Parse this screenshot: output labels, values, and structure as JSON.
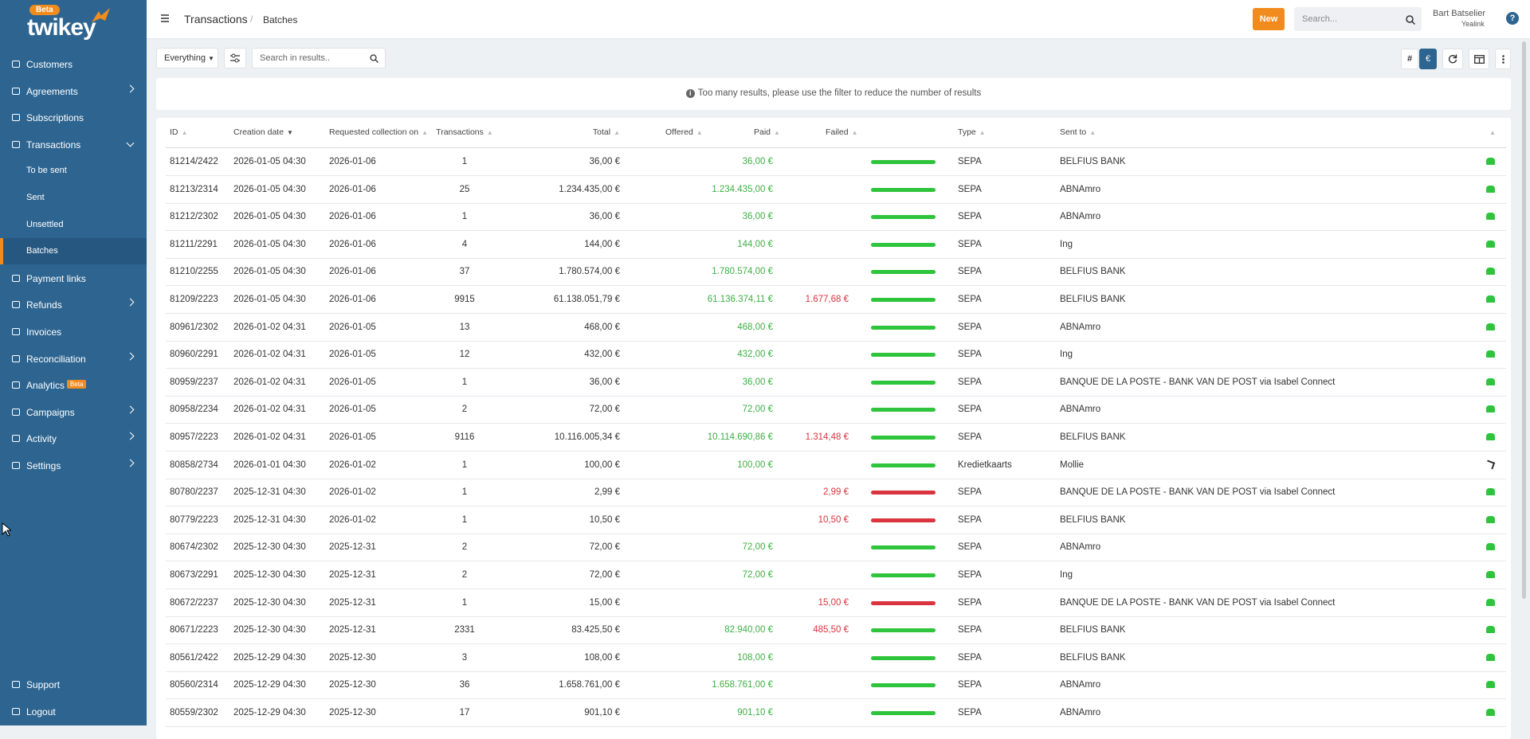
{
  "sidebar": {
    "logo_badge": "Beta",
    "logo": "twikey",
    "nav": [
      {
        "label": "Customers"
      },
      {
        "label": "Agreements",
        "expandable": true
      },
      {
        "label": "Subscriptions"
      },
      {
        "label": "Transactions",
        "expandable": true,
        "children": [
          "To be sent",
          "Sent",
          "Unsettled",
          "Batches"
        ]
      },
      {
        "label": "Payment links"
      },
      {
        "label": "Refunds",
        "expandable": true
      },
      {
        "label": "Invoices"
      },
      {
        "label": "Reconciliation",
        "expandable": true
      },
      {
        "label": "Analytics",
        "badge": "Beta"
      },
      {
        "label": "Campaigns",
        "expandable": true
      },
      {
        "label": "Activity",
        "expandable": true
      },
      {
        "label": "Settings",
        "expandable": true
      }
    ],
    "footer_nav": [
      "Support",
      "Logout"
    ]
  },
  "header": {
    "breadcrumb": [
      "Transactions",
      "Batches"
    ],
    "new_button": "New",
    "search_placeholder": "Search...",
    "user_name": "Bart Batselier",
    "company": "Yealink",
    "help": "?"
  },
  "toolbar": {
    "filter": "Everything",
    "search_placeholder": "Search in results..",
    "toggle_count": "#",
    "toggle_amount": "€"
  },
  "notice": "Too many results, please use the filter to reduce the number of results",
  "table": {
    "columns": [
      "ID",
      "Creation date",
      "Requested collection on",
      "Transactions",
      "Total",
      "Offered",
      "Paid",
      "Failed",
      null,
      "Type",
      "Sent to",
      null
    ],
    "rows": [
      [
        "81214/2422",
        "2026-01-05 04:30",
        "2026-01-06",
        "1",
        "36,00 €",
        null,
        "36,00 €",
        null,
        "SEPA",
        "BELFIUS BANK"
      ],
      [
        "81213/2314",
        "2026-01-05 04:30",
        "2026-01-06",
        "25",
        "1.234.435,00 €",
        null,
        "1.234.435,00 €",
        null,
        "SEPA",
        "ABNAmro"
      ],
      [
        "81212/2302",
        "2026-01-05 04:30",
        "2026-01-06",
        "1",
        "36,00 €",
        null,
        "36,00 €",
        null,
        "SEPA",
        "ABNAmro"
      ],
      [
        "81211/2291",
        "2026-01-05 04:30",
        "2026-01-06",
        "4",
        "144,00 €",
        null,
        "144,00 €",
        null,
        "SEPA",
        "Ing"
      ],
      [
        "81210/2255",
        "2026-01-05 04:30",
        "2026-01-06",
        "37",
        "1.780.574,00 €",
        null,
        "1.780.574,00 €",
        null,
        "SEPA",
        "BELFIUS BANK"
      ],
      [
        "81209/2223",
        "2026-01-05 04:30",
        "2026-01-06",
        "9915",
        "61.138.051,79 €",
        null,
        "61.136.374,11 €",
        "1.677,68 €",
        "SEPA",
        "BELFIUS BANK"
      ],
      [
        "80961/2302",
        "2026-01-02 04:31",
        "2026-01-05",
        "13",
        "468,00 €",
        null,
        "468,00 €",
        null,
        "SEPA",
        "ABNAmro"
      ],
      [
        "80960/2291",
        "2026-01-02 04:31",
        "2026-01-05",
        "12",
        "432,00 €",
        null,
        "432,00 €",
        null,
        "SEPA",
        "Ing"
      ],
      [
        "80959/2237",
        "2026-01-02 04:31",
        "2026-01-05",
        "1",
        "36,00 €",
        null,
        "36,00 €",
        null,
        "SEPA",
        "BANQUE DE LA POSTE - BANK VAN DE POST via Isabel Connect"
      ],
      [
        "80958/2234",
        "2026-01-02 04:31",
        "2026-01-05",
        "2",
        "72,00 €",
        null,
        "72,00 €",
        null,
        "SEPA",
        "ABNAmro"
      ],
      [
        "80957/2223",
        "2026-01-02 04:31",
        "2026-01-05",
        "9116",
        "10.116.005,34 €",
        null,
        "10.114.690,86 €",
        "1.314,48 €",
        "SEPA",
        "BELFIUS BANK"
      ],
      [
        "80858/2734",
        "2026-01-01 04:30",
        "2026-01-02",
        "1",
        "100,00 €",
        null,
        "100,00 €",
        null,
        "Kredietkaarts",
        "Mollie"
      ],
      [
        "80780/2237",
        "2025-12-31 04:30",
        "2026-01-02",
        "1",
        "2,99 €",
        null,
        null,
        "2,99 €",
        "SEPA",
        "BANQUE DE LA POSTE - BANK VAN DE POST via Isabel Connect"
      ],
      [
        "80779/2223",
        "2025-12-31 04:30",
        "2026-01-02",
        "1",
        "10,50 €",
        null,
        null,
        "10,50 €",
        "SEPA",
        "BELFIUS BANK"
      ],
      [
        "80674/2302",
        "2025-12-30 04:30",
        "2025-12-31",
        "2",
        "72,00 €",
        null,
        "72,00 €",
        null,
        "SEPA",
        "ABNAmro"
      ],
      [
        "80673/2291",
        "2025-12-30 04:30",
        "2025-12-31",
        "2",
        "72,00 €",
        null,
        "72,00 €",
        null,
        "SEPA",
        "Ing"
      ],
      [
        "80672/2237",
        "2025-12-30 04:30",
        "2025-12-31",
        "1",
        "15,00 €",
        null,
        null,
        "15,00 €",
        "SEPA",
        "BANQUE DE LA POSTE - BANK VAN DE POST via Isabel Connect"
      ],
      [
        "80671/2223",
        "2025-12-30 04:30",
        "2025-12-31",
        "2331",
        "83.425,50 €",
        null,
        "82.940,00 €",
        "485,50 €",
        "SEPA",
        "BELFIUS BANK"
      ],
      [
        "80561/2422",
        "2025-12-29 04:30",
        "2025-12-30",
        "3",
        "108,00 €",
        null,
        "108,00 €",
        null,
        "SEPA",
        "BELFIUS BANK"
      ],
      [
        "80560/2314",
        "2025-12-29 04:30",
        "2025-12-30",
        "36",
        "1.658.761,00 €",
        null,
        "1.658.761,00 €",
        null,
        "SEPA",
        "ABNAmro"
      ],
      [
        "80559/2302",
        "2025-12-29 04:30",
        "2025-12-30",
        "17",
        "901,10 €",
        null,
        "901,10 €",
        null,
        "SEPA",
        "ABNAmro"
      ]
    ]
  }
}
